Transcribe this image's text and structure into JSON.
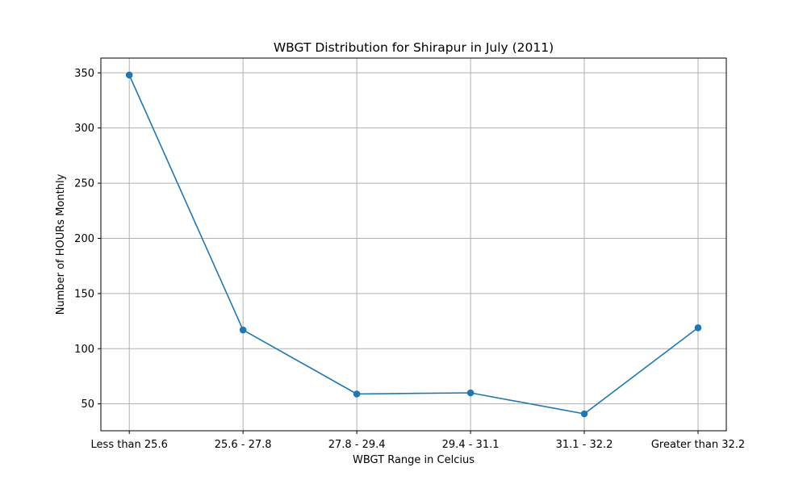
{
  "chart_data": {
    "type": "line",
    "title": "WBGT Distribution for Shirapur in July (2011)",
    "xlabel": "WBGT Range in Celcius",
    "ylabel": "Number of HOURs Monthly",
    "categories": [
      "Less than 25.6",
      "25.6 - 27.8",
      "27.8 - 29.4",
      "29.4 - 31.1",
      "31.1 - 32.2",
      "Greater than 32.2"
    ],
    "series": [
      {
        "values": [
          348,
          117,
          59,
          60,
          41,
          119
        ]
      }
    ],
    "yticks": [
      50,
      100,
      150,
      200,
      250,
      300,
      350
    ],
    "ylim": [
      25.65,
      363.35
    ],
    "grid": true,
    "line_color": "#1f77b4"
  }
}
